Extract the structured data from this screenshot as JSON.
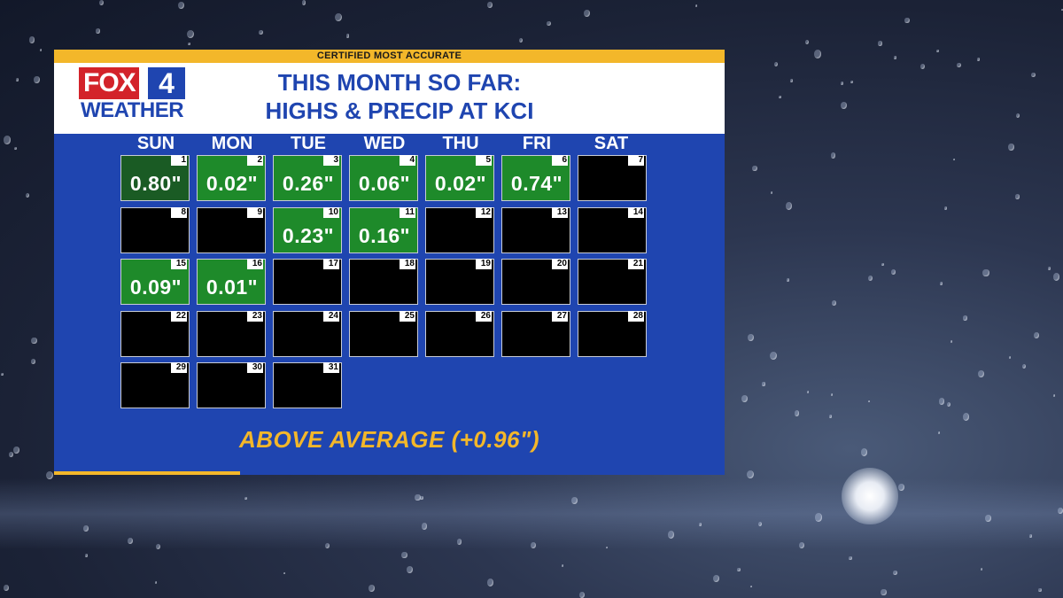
{
  "banner": {
    "certified": "CERTIFIED MOST ACCURATE"
  },
  "logo": {
    "fox": "FOX",
    "four": "4",
    "weather": "WEATHER"
  },
  "title": {
    "line1": "THIS MONTH SO FAR:",
    "line2": "HIGHS & PRECIP AT KCI"
  },
  "day_headers": [
    "SUN",
    "MON",
    "TUE",
    "WED",
    "THU",
    "FRI",
    "SAT"
  ],
  "calendar": {
    "days": [
      {
        "day": "1",
        "precip": "0.80\""
      },
      {
        "day": "2",
        "precip": "0.02\""
      },
      {
        "day": "3",
        "precip": "0.26\""
      },
      {
        "day": "4",
        "precip": "0.06\""
      },
      {
        "day": "5",
        "precip": "0.02\""
      },
      {
        "day": "6",
        "precip": "0.74\""
      },
      {
        "day": "7",
        "precip": ""
      },
      {
        "day": "8",
        "precip": ""
      },
      {
        "day": "9",
        "precip": ""
      },
      {
        "day": "10",
        "precip": "0.23\""
      },
      {
        "day": "11",
        "precip": "0.16\""
      },
      {
        "day": "12",
        "precip": ""
      },
      {
        "day": "13",
        "precip": ""
      },
      {
        "day": "14",
        "precip": ""
      },
      {
        "day": "15",
        "precip": "0.09\""
      },
      {
        "day": "16",
        "precip": "0.01\""
      },
      {
        "day": "17",
        "precip": ""
      },
      {
        "day": "18",
        "precip": ""
      },
      {
        "day": "19",
        "precip": ""
      },
      {
        "day": "20",
        "precip": ""
      },
      {
        "day": "21",
        "precip": ""
      },
      {
        "day": "22",
        "precip": ""
      },
      {
        "day": "23",
        "precip": ""
      },
      {
        "day": "24",
        "precip": ""
      },
      {
        "day": "25",
        "precip": ""
      },
      {
        "day": "26",
        "precip": ""
      },
      {
        "day": "27",
        "precip": ""
      },
      {
        "day": "28",
        "precip": ""
      },
      {
        "day": "29",
        "precip": ""
      },
      {
        "day": "30",
        "precip": ""
      },
      {
        "day": "31",
        "precip": ""
      }
    ]
  },
  "summary": {
    "text": "ABOVE AVERAGE (+0.96\")"
  },
  "colors": {
    "panel": "#1f45b0",
    "accent": "#f3b72a",
    "rain_day": "#1e8a2a",
    "dry_day": "#000000"
  }
}
